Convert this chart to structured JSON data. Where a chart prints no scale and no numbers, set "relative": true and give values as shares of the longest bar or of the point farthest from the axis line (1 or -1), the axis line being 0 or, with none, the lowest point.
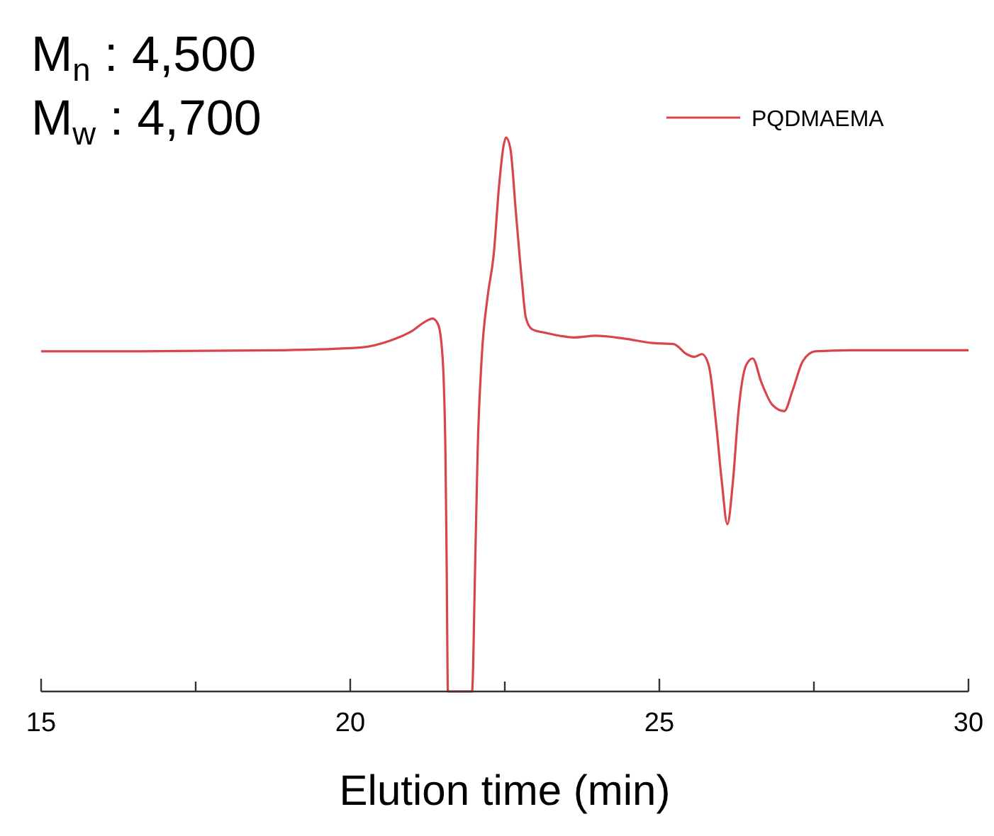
{
  "chart_data": {
    "type": "line",
    "xlabel": "Elution time (min)",
    "relative": true,
    "xlim": [
      15,
      30
    ],
    "xticks": [
      15,
      {
        "value": 17.5,
        "label": null
      },
      20,
      {
        "value": 22.5,
        "label": null
      },
      25,
      {
        "value": 27.5,
        "label": null
      },
      30
    ],
    "legend": "top right",
    "grid": false,
    "annotations": [
      "M$_{n}$ : 4,500",
      "M$_{w}$ : 4,700"
    ],
    "series": [
      {
        "name": "PQDMAEMA",
        "color": "#d9454b",
        "x": [
          15,
          16.63,
          18.92,
          20.18,
          20.64,
          20.99,
          21.22,
          21.33,
          21.42,
          21.49,
          21.54,
          21.56,
          21.58,
          21.97,
          22.02,
          22.06,
          22.13,
          22.22,
          22.32,
          22.41,
          22.48,
          22.52,
          22.59,
          22.68,
          22.78,
          22.84,
          22.94,
          23.17,
          23.39,
          23.62,
          23.97,
          24.43,
          24.89,
          25.23,
          25.44,
          25.57,
          25.69,
          25.8,
          25.92,
          26.01,
          26.1,
          26.19,
          26.28,
          26.4,
          26.51,
          26.65,
          26.83,
          27.02,
          27.16,
          27.32,
          27.52,
          28.1,
          30
        ],
        "values": [
          0.614,
          0.614,
          0.616,
          0.621,
          0.633,
          0.65,
          0.668,
          0.673,
          0.663,
          0.609,
          0.43,
          0.225,
          0,
          0,
          0.225,
          0.43,
          0.609,
          0.711,
          0.788,
          0.916,
          0.985,
          1,
          0.98,
          0.864,
          0.737,
          0.675,
          0.654,
          0.647,
          0.642,
          0.639,
          0.642,
          0.637,
          0.629,
          0.627,
          0.609,
          0.604,
          0.609,
          0.588,
          0.481,
          0.379,
          0.302,
          0.379,
          0.506,
          0.588,
          0.601,
          0.558,
          0.517,
          0.506,
          0.545,
          0.596,
          0.614,
          0.616,
          0.616
        ]
      }
    ]
  }
}
